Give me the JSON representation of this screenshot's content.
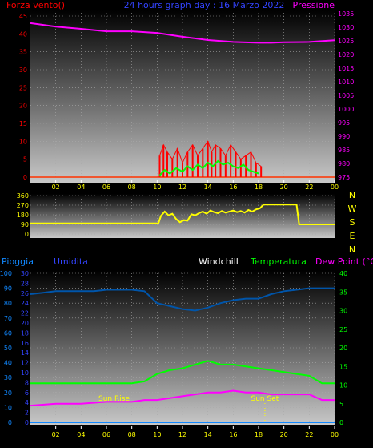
{
  "header_top": {
    "left_label": "Forza vento()",
    "title": "24 hours graph day : 16 Marzo 2022",
    "right_label": "Pressione"
  },
  "header_bottom": {
    "pioggia": "Pioggia",
    "umidita": "Umidita",
    "windchill": "Windchill",
    "temperatura": "Temperatura",
    "dewpoint": "Dew Point (°C)"
  },
  "markers": {
    "sunrise": "Sun Rise",
    "sunset": "Sun Set"
  },
  "colors": {
    "wind_speed": "#ff0000",
    "wind_avg": "#00ff00",
    "pressure": "#ff00ff",
    "direction": "#ffff00",
    "humidity": "#0055aa",
    "temperature": "#00ff00",
    "dewpoint": "#ff00ff",
    "rain": "#1188ff",
    "sun": "#ffff00",
    "tick_text": "#ffff00",
    "left_text": "#ff0000",
    "right_text": "#ff00ff"
  },
  "chart_data": [
    {
      "type": "line",
      "xticks": [
        "02",
        "04",
        "06",
        "08",
        "10",
        "12",
        "14",
        "16",
        "18",
        "20",
        "22",
        "00"
      ],
      "ylim_left": [
        0,
        45
      ],
      "yticks_left": [
        "0",
        "5",
        "10",
        "15",
        "20",
        "25",
        "30",
        "35",
        "40",
        "45"
      ],
      "ylim_right": [
        975,
        1035
      ],
      "yticks_right": [
        "975",
        "980",
        "985",
        "990",
        "995",
        "1000",
        "1005",
        "1010",
        "1015",
        "1020",
        "1025",
        "1030",
        "1035"
      ],
      "series": [
        {
          "axis": "right",
          "x": [
            0,
            2,
            4,
            6,
            8,
            10,
            12,
            14,
            16,
            18,
            19,
            20,
            22,
            24
          ],
          "y": [
            1031.5,
            1030.2,
            1029.4,
            1028.5,
            1028.5,
            1027.9,
            1026.5,
            1025.3,
            1024.6,
            1024.3,
            1024.3,
            1024.5,
            1024.6,
            1025.2
          ]
        },
        {
          "x": [
            10.2,
            10.5,
            10.8,
            11.2,
            11.6,
            12.0,
            12.4,
            12.8,
            13.2,
            13.6,
            14.0,
            14.3,
            14.6,
            15.0,
            15.4,
            15.8,
            16.2,
            16.6,
            17.0,
            17.4,
            17.8,
            18.2
          ],
          "y": [
            6,
            9,
            7,
            5,
            8,
            4,
            7,
            9,
            6,
            8,
            10,
            7,
            9,
            8,
            6,
            9,
            7,
            5,
            6,
            7,
            4,
            3
          ]
        },
        {
          "x": [
            10.2,
            10.6,
            11.0,
            11.5,
            12.0,
            12.4,
            12.8,
            13.2,
            13.6,
            14.0,
            14.4,
            14.8,
            15.2,
            15.6,
            16.0,
            16.4,
            16.8,
            17.2,
            17.6,
            18.0
          ],
          "y": [
            0.5,
            2,
            1,
            2.5,
            1.5,
            3,
            2,
            3.5,
            2.5,
            4,
            3,
            4.5,
            3.5,
            4,
            3,
            2.5,
            3.5,
            2,
            1.5,
            1
          ]
        }
      ]
    },
    {
      "type": "line",
      "ylim": [
        0,
        360
      ],
      "yticks": [
        "0",
        "90",
        "180",
        "270",
        "360"
      ],
      "compass": [
        "N",
        "W",
        "S",
        "E",
        "N"
      ],
      "series": [
        {
          "x": [
            0,
            10.1,
            10.3,
            10.6,
            10.9,
            11.2,
            11.5,
            11.8,
            12.1,
            12.4,
            12.7,
            13.0,
            13.3,
            13.6,
            13.9,
            14.2,
            14.5,
            14.8,
            15.1,
            15.4,
            15.7,
            16.0,
            16.3,
            16.6,
            16.9,
            17.2,
            17.5,
            17.8,
            18.1,
            18.4,
            19.0,
            20.0,
            21.0,
            21.2,
            22.0,
            24.0
          ],
          "y": [
            100,
            100,
            170,
            210,
            175,
            190,
            140,
            110,
            130,
            125,
            185,
            175,
            195,
            210,
            190,
            220,
            205,
            195,
            215,
            200,
            210,
            220,
            205,
            215,
            200,
            225,
            210,
            230,
            240,
            275,
            275,
            275,
            275,
            90,
            90,
            90
          ]
        }
      ]
    },
    {
      "type": "line",
      "yticks_left1": [
        "0",
        "10",
        "20",
        "30",
        "40",
        "50",
        "60",
        "70",
        "80",
        "90",
        "100"
      ],
      "yticks_left2": [
        "0",
        "2",
        "4",
        "6",
        "8",
        "10",
        "12",
        "14",
        "16",
        "18",
        "20",
        "22",
        "24",
        "26",
        "28",
        "30"
      ],
      "yticks_right": [
        "0",
        "5",
        "10",
        "15",
        "20",
        "25",
        "30",
        "35",
        "40"
      ],
      "series": [
        {
          "x": [
            0,
            1,
            2,
            3,
            4,
            5,
            6,
            7,
            8,
            9,
            10,
            11,
            12,
            13,
            14,
            15,
            16,
            17,
            18,
            19,
            20,
            21,
            22,
            23,
            24
          ],
          "y": [
            86,
            87,
            88,
            88,
            88,
            88,
            89,
            89,
            89,
            88,
            80,
            78,
            76,
            75,
            77,
            80,
            82,
            83,
            83,
            86,
            88,
            89,
            90,
            90,
            90
          ]
        },
        {
          "x": [
            0,
            2,
            4,
            6,
            8,
            9,
            10,
            11,
            12,
            13,
            14,
            15,
            16,
            17,
            18,
            19,
            20,
            21,
            22,
            23,
            24
          ],
          "y": [
            10.5,
            10.5,
            10.5,
            10.5,
            10.5,
            11,
            13,
            14,
            14.5,
            15.5,
            16.5,
            15.5,
            15.5,
            15,
            14.5,
            14,
            13.5,
            13,
            12.5,
            10.5,
            10.5
          ]
        },
        {
          "x": [
            0,
            2,
            4,
            6,
            8,
            9,
            10,
            11,
            12,
            13,
            14,
            15,
            16,
            17,
            18,
            19,
            20,
            21,
            22,
            23,
            24
          ],
          "y": [
            4.5,
            5,
            5,
            5.5,
            5.5,
            6,
            6,
            6.5,
            7,
            7.5,
            8,
            8,
            8.5,
            8,
            8,
            7.5,
            7.5,
            7.5,
            7.5,
            6,
            6
          ]
        },
        {
          "x": [
            0,
            24
          ],
          "y": [
            0,
            0
          ]
        }
      ],
      "sunrise_x": 6.6,
      "sunset_x": 18.5
    }
  ]
}
